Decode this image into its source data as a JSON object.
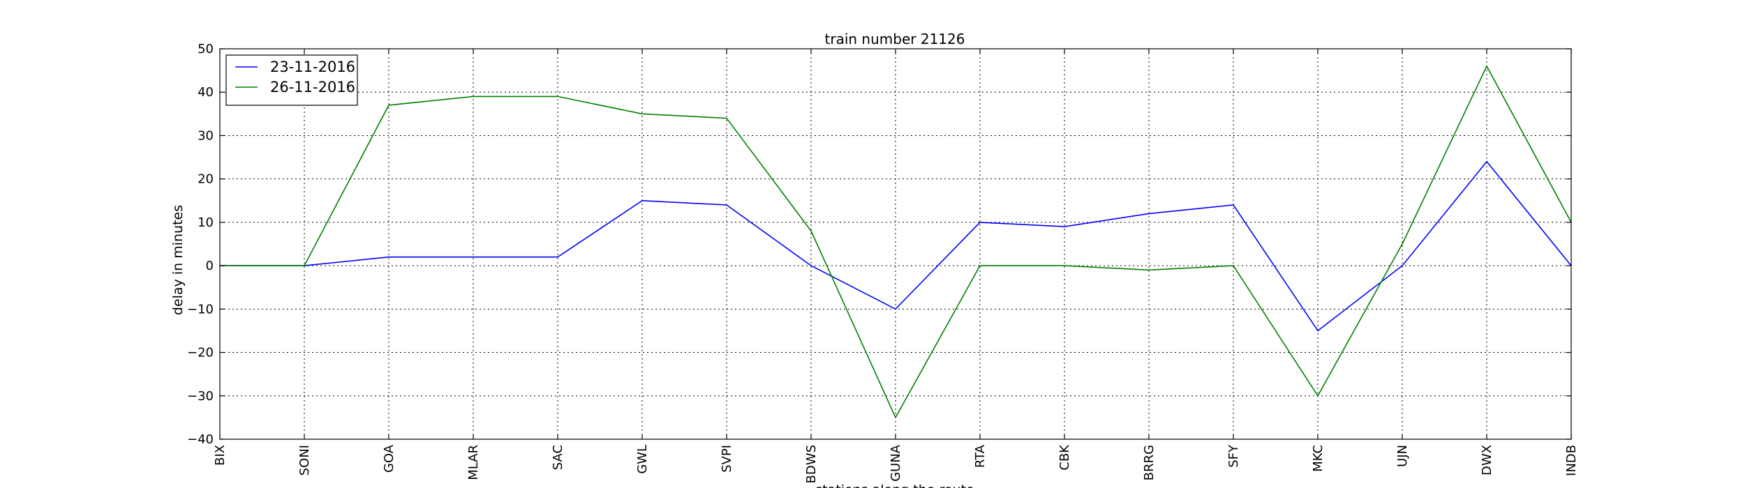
{
  "chart_data": {
    "type": "line",
    "title": "train number 21126",
    "xlabel": "stations along the route",
    "ylabel": "delay in minutes",
    "categories": [
      "BIX",
      "SONI",
      "GOA",
      "MLAR",
      "SAC",
      "GWL",
      "SVPI",
      "BDWS",
      "GUNA",
      "RTA",
      "CBK",
      "BRRG",
      "SFY",
      "MKC",
      "UJN",
      "DWX",
      "INDB"
    ],
    "series": [
      {
        "name": "23-11-2016",
        "color": "#0000ff",
        "values": [
          0,
          0,
          2,
          2,
          2,
          15,
          14,
          0,
          -10,
          10,
          9,
          12,
          14,
          -15,
          0,
          24,
          0
        ]
      },
      {
        "name": "26-11-2016",
        "color": "#008000",
        "values": [
          0,
          0,
          37,
          39,
          39,
          35,
          34,
          8,
          -35,
          0,
          0,
          -1,
          0,
          -30,
          5,
          46,
          10
        ]
      }
    ],
    "ylim": [
      -40,
      50
    ],
    "yticks": [
      -40,
      -30,
      -20,
      -10,
      0,
      10,
      20,
      30,
      40,
      50
    ],
    "grid": true,
    "legend_position": "top-left"
  }
}
